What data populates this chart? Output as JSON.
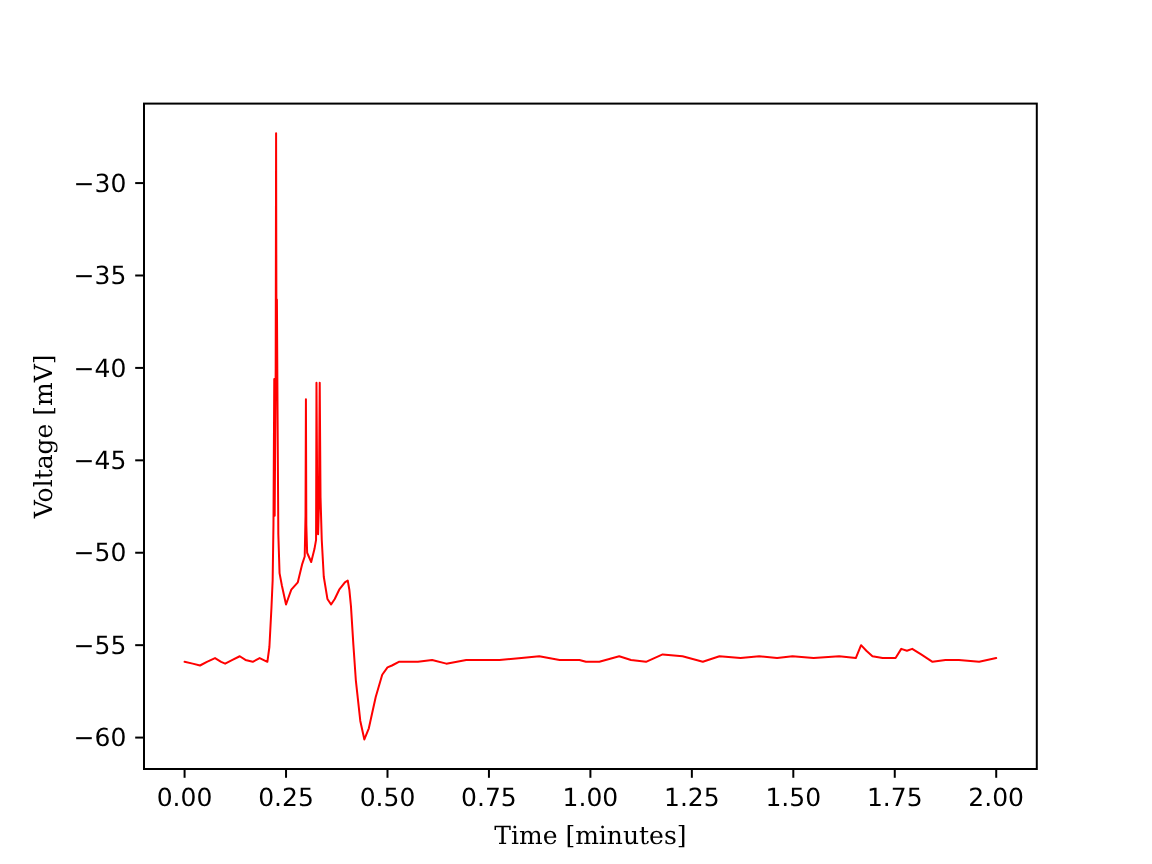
{
  "chart_data": {
    "type": "line",
    "xlabel": "Time [minutes]",
    "ylabel": "Voltage [mV]",
    "xlim": [
      -0.1,
      2.1
    ],
    "ylim": [
      -61.7,
      -25.7
    ],
    "xticks": [
      {
        "value": 0,
        "label": "0.00"
      },
      {
        "value": 0.25,
        "label": "0.25"
      },
      {
        "value": 0.5,
        "label": "0.50"
      },
      {
        "value": 0.75,
        "label": "0.75"
      },
      {
        "value": 1,
        "label": "1.00"
      },
      {
        "value": 1.25,
        "label": "1.25"
      },
      {
        "value": 1.5,
        "label": "1.50"
      },
      {
        "value": 1.75,
        "label": "1.75"
      },
      {
        "value": 2,
        "label": "2.00"
      }
    ],
    "yticks": [
      {
        "value": -60,
        "label": "−60"
      },
      {
        "value": -55,
        "label": "−55"
      },
      {
        "value": -50,
        "label": "−50"
      },
      {
        "value": -45,
        "label": "−45"
      },
      {
        "value": -40,
        "label": "−40"
      },
      {
        "value": -35,
        "label": "−35"
      },
      {
        "value": -30,
        "label": "−30"
      }
    ],
    "x": [
      0,
      0.02,
      0.038,
      0.055,
      0.075,
      0.09,
      0.1,
      0.118,
      0.136,
      0.15,
      0.168,
      0.185,
      0.204,
      0.209,
      0.214,
      0.217,
      0.219,
      0.221,
      0.222,
      0.2245,
      0.2255,
      0.2265,
      0.2275,
      0.229,
      0.231,
      0.234,
      0.24,
      0.25,
      0.258,
      0.263,
      0.279,
      0.29,
      0.296,
      0.298,
      0.299,
      0.3,
      0.302,
      0.312,
      0.32,
      0.324,
      0.325,
      0.327,
      0.329,
      0.331,
      0.333,
      0.335,
      0.338,
      0.343,
      0.352,
      0.361,
      0.37,
      0.381,
      0.395,
      0.402,
      0.406,
      0.41,
      0.416,
      0.422,
      0.433,
      0.443,
      0.454,
      0.462,
      0.471,
      0.487,
      0.5,
      0.511,
      0.528,
      0.575,
      0.61,
      0.645,
      0.694,
      0.74,
      0.776,
      0.83,
      0.874,
      0.924,
      0.973,
      0.989,
      1.022,
      1.071,
      1.1,
      1.137,
      1.178,
      1.227,
      1.277,
      1.318,
      1.37,
      1.416,
      1.46,
      1.498,
      1.55,
      1.613,
      1.654,
      1.667,
      1.68,
      1.695,
      1.72,
      1.752,
      1.766,
      1.78,
      1.793,
      1.815,
      1.843,
      1.875,
      1.908,
      1.958,
      2.0
    ],
    "series": [
      {
        "color": "#ff0000",
        "values": [
          -55.9,
          -56.0,
          -56.1,
          -55.9,
          -55.7,
          -55.9,
          -56.0,
          -55.8,
          -55.6,
          -55.8,
          -55.9,
          -55.7,
          -55.9,
          -55.1,
          -53.0,
          -51.5,
          -48.5,
          -40.6,
          -48.0,
          -40.0,
          -27.3,
          -40.0,
          -36.3,
          -42.1,
          -49.0,
          -51.1,
          -51.8,
          -52.8,
          -52.3,
          -52.0,
          -51.6,
          -50.6,
          -50.2,
          -48.0,
          -41.7,
          -48.5,
          -50.0,
          -50.5,
          -49.8,
          -49.3,
          -40.8,
          -47.5,
          -49.0,
          -47.5,
          -40.8,
          -47.0,
          -49.3,
          -51.3,
          -52.5,
          -52.8,
          -52.5,
          -52.0,
          -51.6,
          -51.5,
          -52.0,
          -52.9,
          -55.0,
          -56.9,
          -59.1,
          -60.1,
          -59.5,
          -58.7,
          -57.8,
          -56.6,
          -56.2,
          -56.1,
          -55.9,
          -55.9,
          -55.8,
          -56.0,
          -55.8,
          -55.8,
          -55.8,
          -55.7,
          -55.6,
          -55.8,
          -55.8,
          -55.9,
          -55.9,
          -55.6,
          -55.8,
          -55.9,
          -55.5,
          -55.6,
          -55.9,
          -55.6,
          -55.7,
          -55.6,
          -55.7,
          -55.6,
          -55.7,
          -55.6,
          -55.7,
          -55.0,
          -55.3,
          -55.6,
          -55.7,
          -55.7,
          -55.2,
          -55.3,
          -55.2,
          -55.5,
          -55.9,
          -55.8,
          -55.8,
          -55.9,
          -55.7
        ]
      }
    ]
  }
}
